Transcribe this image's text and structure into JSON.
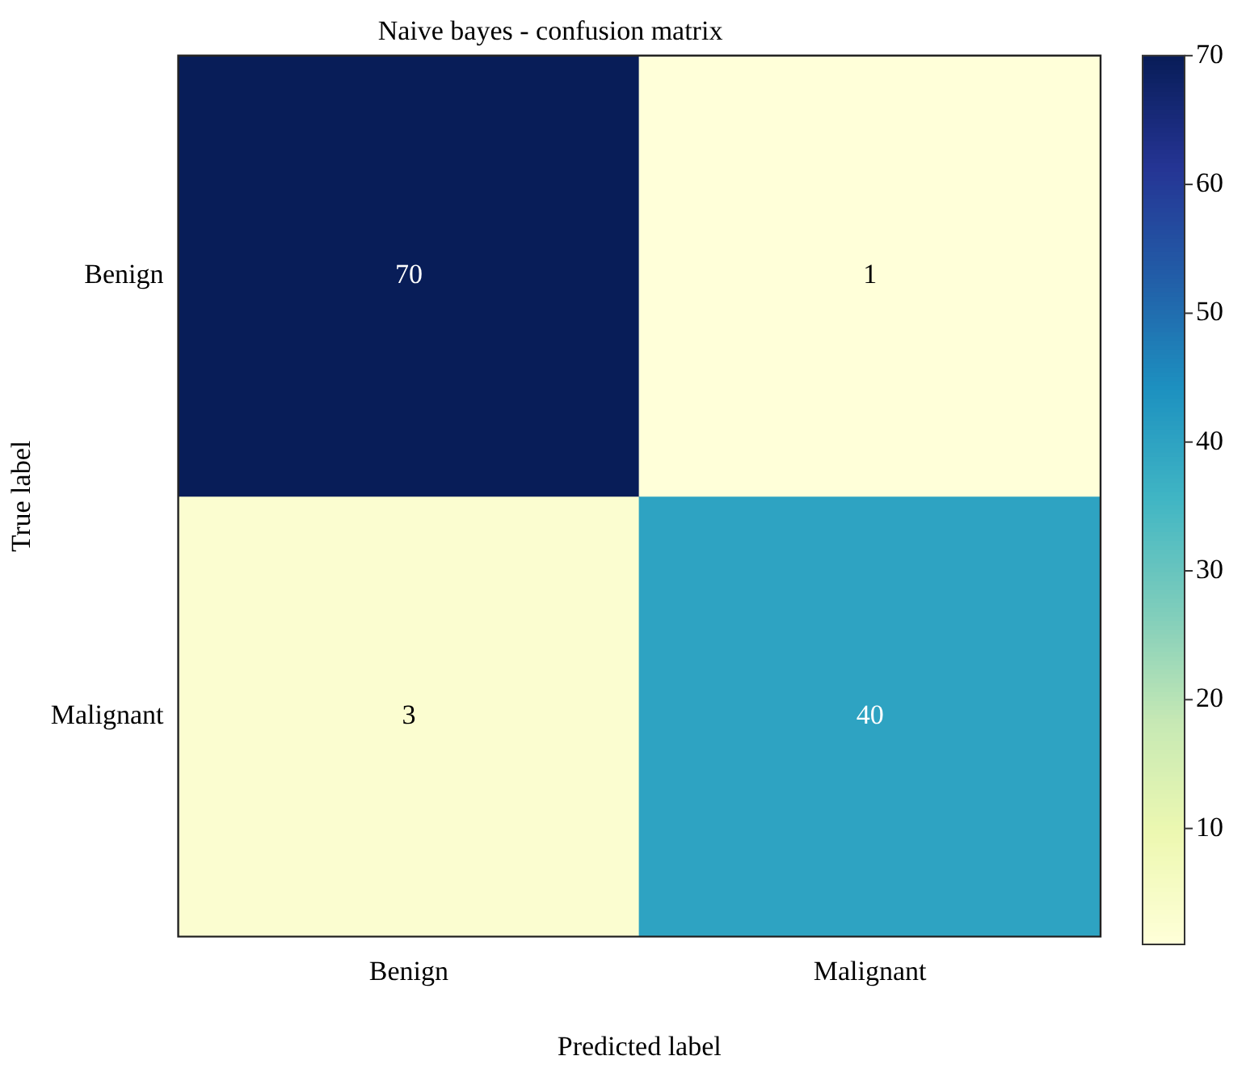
{
  "chart_data": {
    "type": "heatmap",
    "title": "Naive bayes - confusion matrix",
    "xlabel": "Predicted label",
    "ylabel": "True label",
    "categories": [
      "Benign",
      "Malignant"
    ],
    "y_categories": [
      "Benign",
      "Malignant"
    ],
    "cells": [
      [
        70,
        1
      ],
      [
        3,
        40
      ]
    ],
    "data_labels": true,
    "clim": [
      1,
      70
    ],
    "cticks": [
      10,
      20,
      30,
      40,
      50,
      60,
      70
    ]
  }
}
